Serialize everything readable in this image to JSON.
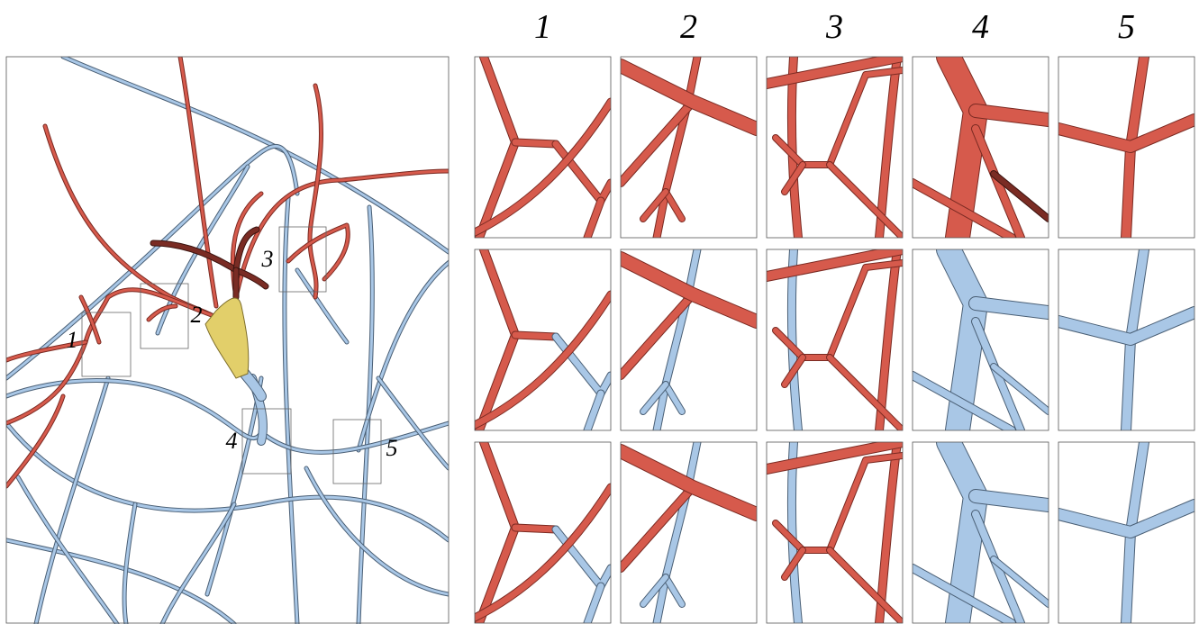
{
  "overview": {
    "inset_labels": [
      "1",
      "2",
      "3",
      "4",
      "5"
    ]
  },
  "closeups": {
    "column_headers": [
      "1",
      "2",
      "3",
      "4",
      "5"
    ]
  }
}
